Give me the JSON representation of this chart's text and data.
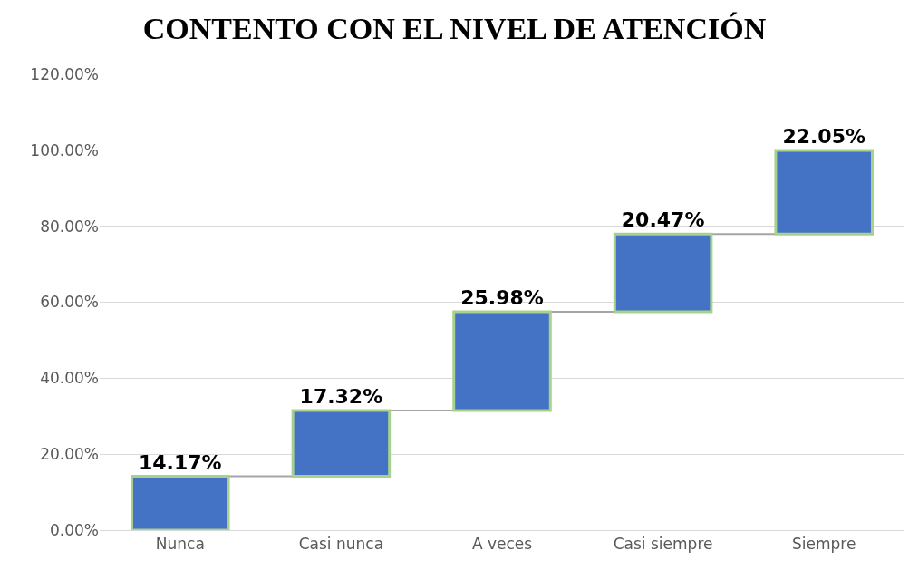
{
  "chart_data": {
    "type": "bar",
    "title": "CONTENTO CON EL NIVEL DE ATENCIÓN",
    "categories": [
      "Nunca",
      "Casi nunca",
      "A veces",
      "Casi siempre",
      "Siempre"
    ],
    "values": [
      14.17,
      17.32,
      25.98,
      20.47,
      22.05
    ],
    "base": [
      0,
      14.17,
      31.49,
      57.47,
      77.94
    ],
    "value_labels": [
      "14.17%",
      "17.32%",
      "25.98%",
      "20.47%",
      "22.05%"
    ],
    "color": "#4472c4",
    "ylim": [
      0,
      120
    ],
    "yticks": [
      {
        "value": 0,
        "label": "0.00%"
      },
      {
        "value": 20,
        "label": "20.00%"
      },
      {
        "value": 40,
        "label": "40.00%"
      },
      {
        "value": 60,
        "label": "60.00%"
      },
      {
        "value": 80,
        "label": "80.00%"
      },
      {
        "value": 100,
        "label": "100.00%"
      },
      {
        "value": 120,
        "label": "120.00%"
      }
    ],
    "grid": "y"
  }
}
